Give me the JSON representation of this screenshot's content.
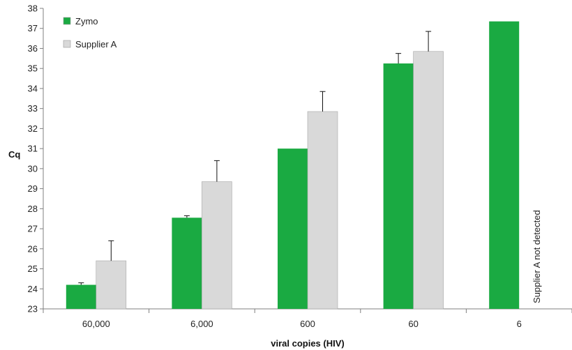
{
  "chart_data": {
    "type": "bar",
    "ylabel": "Cq",
    "xlabel": "viral copies (HIV)",
    "ylim": [
      23,
      38
    ],
    "ytick_step": 1,
    "grid": false,
    "legend_position": "top-left",
    "categories": [
      "60,000",
      "6,000",
      "600",
      "60",
      "6"
    ],
    "series": [
      {
        "name": "Zymo",
        "color": "#1aaa42",
        "values": [
          24.2,
          27.55,
          31.0,
          35.25,
          37.35
        ],
        "errors": [
          0.1,
          0.1,
          0.0,
          0.5,
          0.0
        ]
      },
      {
        "name": "Supplier A",
        "color": "#d9d9d9",
        "values": [
          25.4,
          29.35,
          32.85,
          35.85,
          null
        ],
        "errors": [
          1.0,
          1.05,
          1.0,
          1.0,
          null
        ]
      }
    ],
    "annotation": "Supplier A not detected"
  }
}
